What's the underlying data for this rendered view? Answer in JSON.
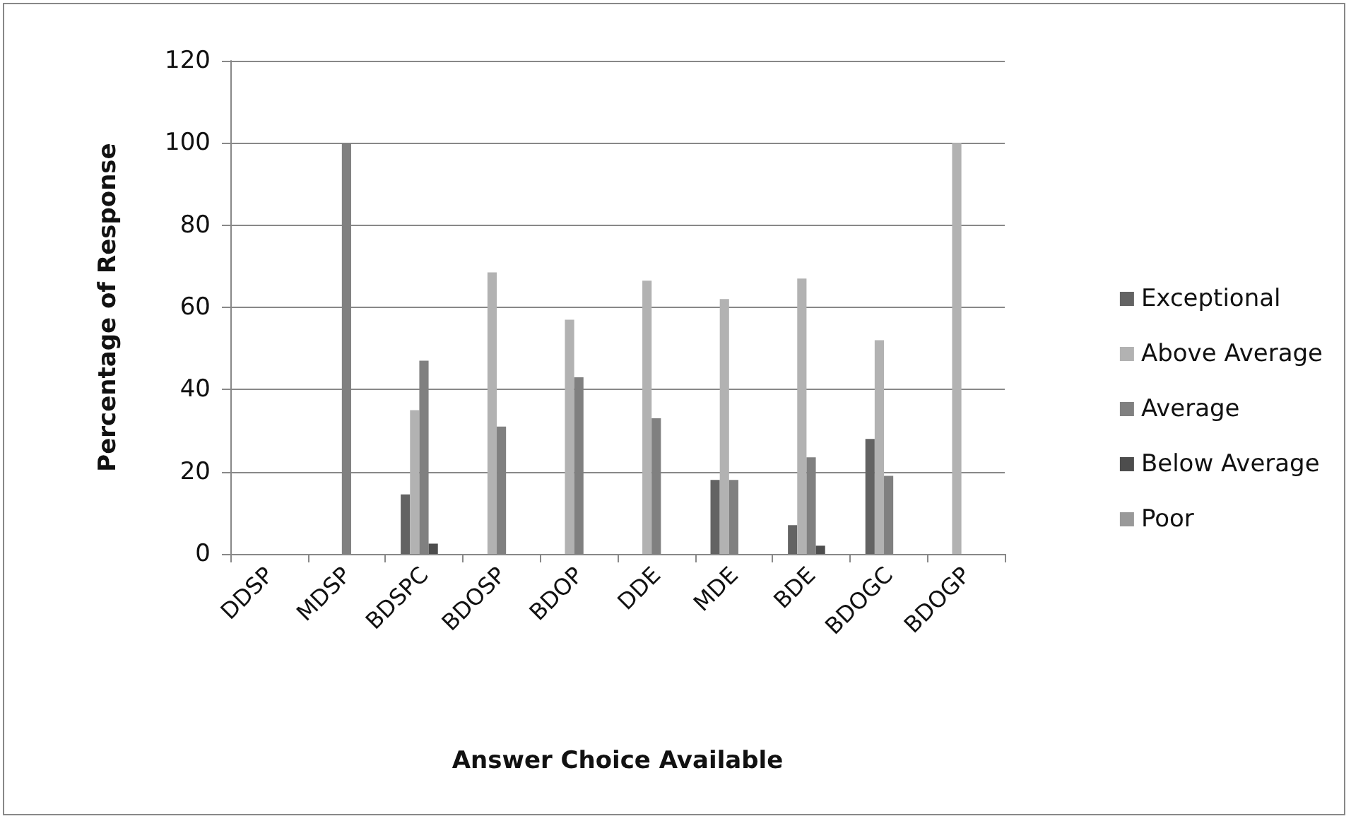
{
  "chart_data": {
    "type": "bar",
    "xlabel": "Answer Choice Available",
    "ylabel": "Percentage of Response",
    "categories": [
      "DDSP",
      "MDSP",
      "BDSPC",
      "BDOSP",
      "BDOP",
      "DDE",
      "MDE",
      "BDE",
      "BDOGC",
      "BDOGP"
    ],
    "series": [
      {
        "name": "Exceptional",
        "color": "#636363",
        "values": [
          0,
          0,
          14.5,
          0,
          0,
          0,
          18,
          7,
          28,
          0
        ]
      },
      {
        "name": "Above Average",
        "color": "#b2b2b2",
        "values": [
          0,
          0,
          35,
          68.5,
          57,
          66.5,
          62,
          67,
          52,
          100
        ]
      },
      {
        "name": "Average",
        "color": "#808080",
        "values": [
          0,
          100,
          47,
          31,
          43,
          33,
          18,
          23.5,
          19,
          0
        ]
      },
      {
        "name": "Below Average",
        "color": "#4d4d4d",
        "values": [
          0,
          0,
          2.5,
          0,
          0,
          0,
          0,
          2,
          0,
          0
        ]
      },
      {
        "name": "Poor",
        "color": "#999999",
        "values": [
          0,
          0,
          0,
          0,
          0,
          0,
          0,
          0,
          0,
          0
        ]
      }
    ],
    "ylim": [
      0,
      120
    ],
    "yticks": [
      0,
      20,
      40,
      60,
      80,
      100,
      120
    ],
    "grid": "y",
    "legend": "right"
  }
}
